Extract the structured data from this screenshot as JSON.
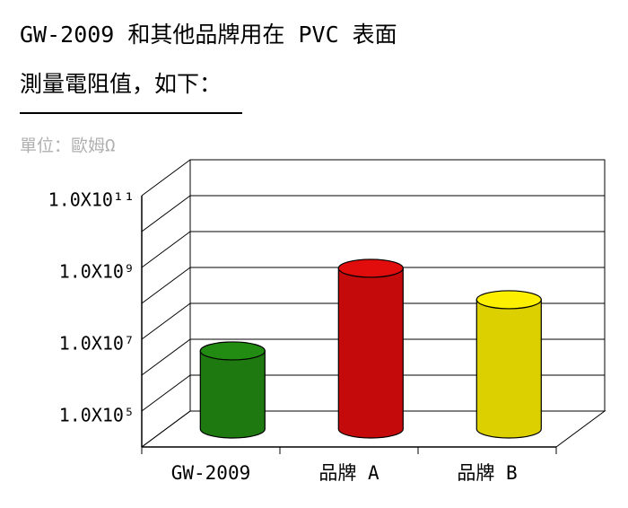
{
  "heading": {
    "line1": "GW-2009 和其他品牌用在 PVC 表面",
    "line2": "測量電阻值，如下："
  },
  "chart_data": {
    "type": "cylinder",
    "unit_label": "單位：歐姆Ω",
    "categories": [
      "GW-2009",
      "品牌 A",
      "品牌 B"
    ],
    "values": [
      1500000,
      300000000,
      40000000
    ],
    "colors": [
      "#1e7a10",
      "#c40a0a",
      "#dcd000"
    ],
    "log_scale": true,
    "grid": true,
    "ylim": [
      10000,
      100000000000
    ],
    "yticks": [
      {
        "value": 100000,
        "label": "1.0X10⁵"
      },
      {
        "value": 10000000,
        "label": "1.0X10⁷"
      },
      {
        "value": 1000000000,
        "label": "1.0X10⁹"
      },
      {
        "value": 100000000000,
        "label": "1.0X10¹¹"
      }
    ],
    "minor_yticks": [
      10000,
      1000000,
      100000000,
      10000000000
    ]
  }
}
